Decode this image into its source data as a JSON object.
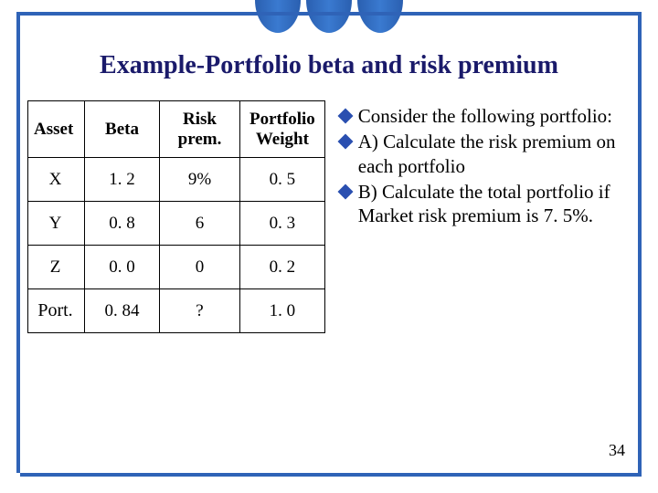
{
  "title": "Example-Portfolio beta and risk premium",
  "table": {
    "headers": [
      "Asset",
      "Beta",
      "Risk prem.",
      "Portfolio Weight"
    ],
    "rows": [
      [
        "X",
        "1. 2",
        "9%",
        "0. 5"
      ],
      [
        "Y",
        "0. 8",
        "6",
        "0. 3"
      ],
      [
        "Z",
        "0. 0",
        "0",
        "0. 2"
      ],
      [
        "Port.",
        "0. 84",
        "?",
        "1. 0"
      ]
    ]
  },
  "bullets": [
    "Consider the following portfolio:",
    "A) Calculate the risk premium on each portfolio",
    "B) Calculate the total portfolio if Market risk premium is 7. 5%."
  ],
  "page_number": "34",
  "colors": {
    "frame": "#2f63b7",
    "title": "#1a1a6a",
    "bullet_diamond": "#2a4fb0"
  }
}
